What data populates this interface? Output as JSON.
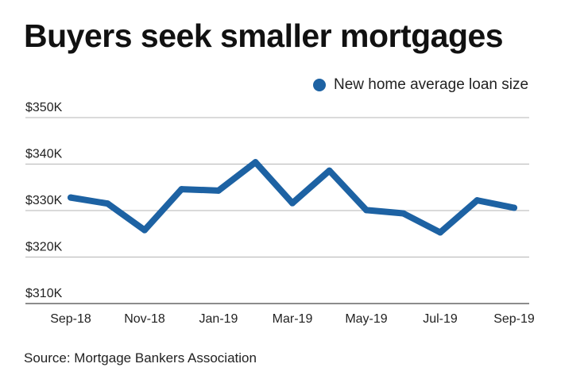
{
  "chart_data": {
    "type": "line",
    "title": "Buyers seek smaller mortgages",
    "source": "Source: Mortgage Bankers Association",
    "colors": {
      "line": "#1d62a3",
      "grid": "#b5b5b5",
      "axis": "#666666"
    },
    "legend": {
      "position": "top-right"
    },
    "grid": true,
    "ylim": [
      310000,
      350000
    ],
    "y_ticks": [
      {
        "value": 350000,
        "label": "$350K"
      },
      {
        "value": 340000,
        "label": "$340K"
      },
      {
        "value": 330000,
        "label": "$330K"
      },
      {
        "value": 320000,
        "label": "$320K"
      },
      {
        "value": 310000,
        "label": "$310K"
      }
    ],
    "x": [
      "Sep-18",
      "Oct-18",
      "Nov-18",
      "Dec-18",
      "Jan-19",
      "Feb-19",
      "Mar-19",
      "Apr-19",
      "May-19",
      "Jun-19",
      "Jul-19",
      "Aug-19",
      "Sep-19"
    ],
    "x_tick_labels": [
      "Sep-18",
      "",
      "Nov-18",
      "",
      "Jan-19",
      "",
      "Mar-19",
      "",
      "May-19",
      "",
      "Jul-19",
      "",
      "Sep-19"
    ],
    "series": [
      {
        "name": "New home average loan size",
        "values": [
          332800,
          331500,
          325800,
          334600,
          334300,
          340400,
          331600,
          338600,
          330100,
          329400,
          325300,
          332200,
          330600
        ]
      }
    ]
  }
}
